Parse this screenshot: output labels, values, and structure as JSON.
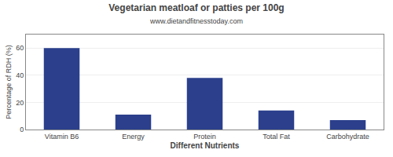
{
  "chart_data": {
    "type": "bar",
    "title": "Vegetarian meatloaf or patties per 100g",
    "subtitle": "www.dietandfitnesstoday.com",
    "xlabel": "Different Nutrients",
    "ylabel": "Percentage of RDH (%)",
    "categories": [
      "Vitamin B6",
      "Energy",
      "Protein",
      "Total Fat",
      "Carbohydrate"
    ],
    "values": [
      60,
      11,
      38,
      14,
      7
    ],
    "color": "#2b3f8c",
    "ylim": [
      0,
      70
    ],
    "yticks": [
      0,
      20,
      40,
      60
    ],
    "grid": true
  }
}
